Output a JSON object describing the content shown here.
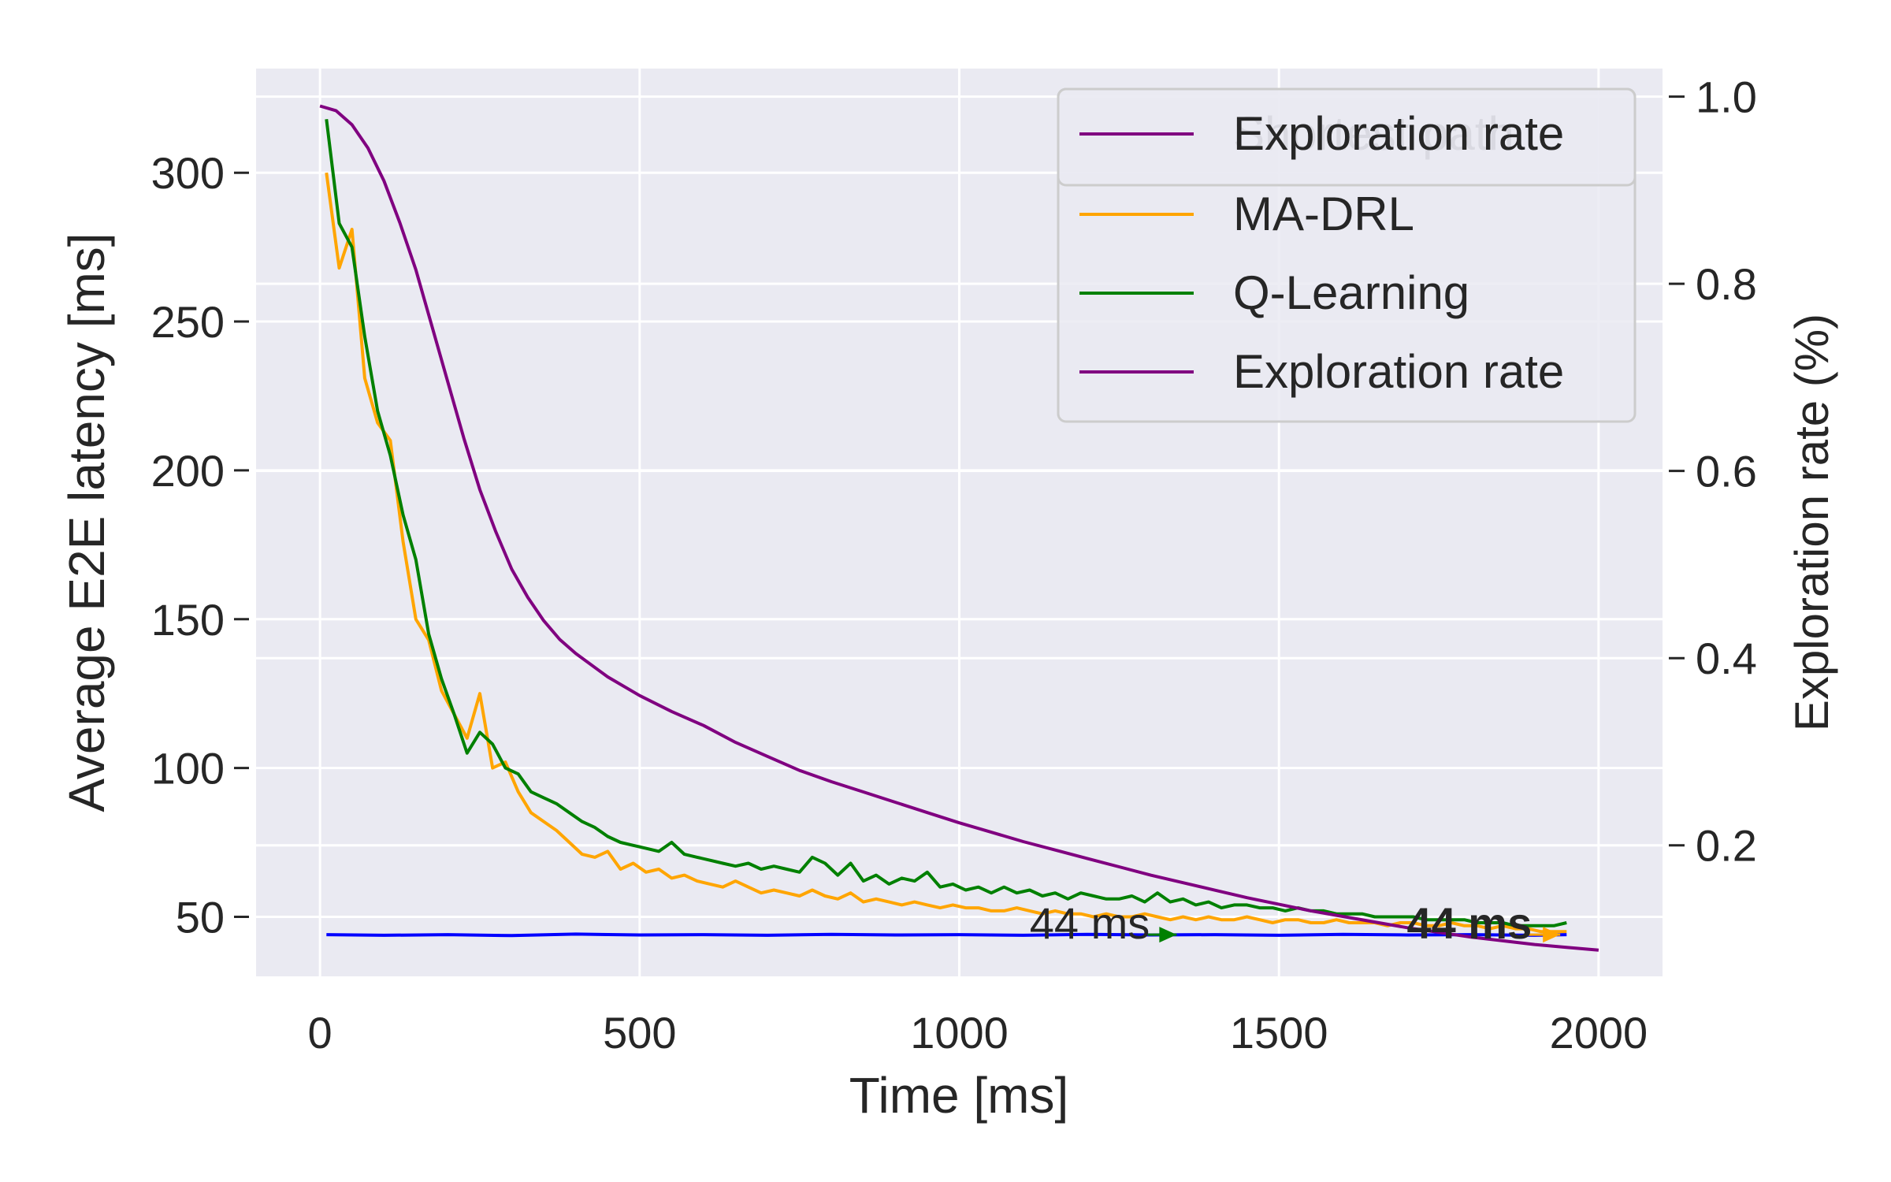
{
  "chart_data": {
    "type": "line",
    "xlabel": "Time [ms]",
    "ylabel": "Average E2E latency [ms]",
    "y2label": "Exploration rate (%)",
    "xlim": [
      -100,
      2100
    ],
    "ylim": [
      30,
      335
    ],
    "y2lim": [
      0.06,
      1.03
    ],
    "xticks": [
      0,
      500,
      1000,
      1500,
      2000
    ],
    "yticks": [
      50,
      100,
      150,
      200,
      250,
      300
    ],
    "y2ticks": [
      0.2,
      0.4,
      0.6,
      0.8,
      1.0
    ],
    "grid": true,
    "legend_position": "top-right",
    "legend": [
      {
        "label": "Exploration rate",
        "series": "exploration_rate"
      },
      {
        "label": "MA-DRL",
        "series": "ma_drl"
      },
      {
        "label": "Q-Learning",
        "series": "q_learning"
      },
      {
        "label": "Exploration rate",
        "series": "exploration_rate"
      }
    ],
    "legend_overlay": {
      "label": "Exploration rate",
      "ghost_text": "Shortest path"
    },
    "series": [
      {
        "id": "ma_drl",
        "name": "MA-DRL",
        "axis": "left",
        "color": "#ffa500",
        "x": [
          10,
          30,
          50,
          70,
          90,
          110,
          130,
          150,
          170,
          190,
          210,
          230,
          250,
          270,
          290,
          310,
          330,
          350,
          370,
          390,
          410,
          430,
          450,
          470,
          490,
          510,
          530,
          550,
          570,
          590,
          610,
          630,
          650,
          670,
          690,
          710,
          730,
          750,
          770,
          790,
          810,
          830,
          850,
          870,
          890,
          910,
          930,
          950,
          970,
          990,
          1010,
          1030,
          1050,
          1070,
          1090,
          1110,
          1130,
          1150,
          1170,
          1190,
          1210,
          1230,
          1250,
          1270,
          1290,
          1310,
          1330,
          1350,
          1370,
          1390,
          1410,
          1430,
          1450,
          1470,
          1490,
          1510,
          1530,
          1550,
          1570,
          1590,
          1610,
          1630,
          1650,
          1670,
          1690,
          1710,
          1730,
          1750,
          1770,
          1790,
          1810,
          1830,
          1850,
          1870,
          1890,
          1910,
          1930,
          1950
        ],
        "values": [
          300,
          268,
          281,
          231,
          216,
          210,
          176,
          150,
          143,
          126,
          118,
          110,
          125,
          100,
          102,
          92,
          85,
          82,
          79,
          75,
          71,
          70,
          72,
          66,
          68,
          65,
          66,
          63,
          64,
          62,
          61,
          60,
          62,
          60,
          58,
          59,
          58,
          57,
          59,
          57,
          56,
          58,
          55,
          56,
          55,
          54,
          55,
          54,
          53,
          54,
          53,
          53,
          52,
          52,
          53,
          52,
          51,
          52,
          51,
          51,
          50,
          51,
          50,
          50,
          51,
          50,
          49,
          50,
          49,
          50,
          49,
          49,
          50,
          49,
          48,
          49,
          49,
          48,
          48,
          49,
          48,
          48,
          48,
          47,
          48,
          48,
          47,
          47,
          48,
          47,
          47,
          46,
          47,
          46,
          46,
          45,
          45,
          45
        ]
      },
      {
        "id": "q_learning",
        "name": "Q-Learning",
        "axis": "left",
        "color": "#008000",
        "x": [
          10,
          30,
          50,
          70,
          90,
          110,
          130,
          150,
          170,
          190,
          210,
          230,
          250,
          270,
          290,
          310,
          330,
          350,
          370,
          390,
          410,
          430,
          450,
          470,
          490,
          510,
          530,
          550,
          570,
          590,
          610,
          630,
          650,
          670,
          690,
          710,
          730,
          750,
          770,
          790,
          810,
          830,
          850,
          870,
          890,
          910,
          930,
          950,
          970,
          990,
          1010,
          1030,
          1050,
          1070,
          1090,
          1110,
          1130,
          1150,
          1170,
          1190,
          1210,
          1230,
          1250,
          1270,
          1290,
          1310,
          1330,
          1350,
          1370,
          1390,
          1410,
          1430,
          1450,
          1470,
          1490,
          1510,
          1530,
          1550,
          1570,
          1590,
          1610,
          1630,
          1650,
          1670,
          1690,
          1710,
          1730,
          1750,
          1770,
          1790,
          1810,
          1830,
          1850,
          1870,
          1890,
          1910,
          1930,
          1950
        ],
        "values": [
          318,
          283,
          275,
          245,
          220,
          205,
          185,
          170,
          145,
          130,
          118,
          105,
          112,
          108,
          100,
          98,
          92,
          90,
          88,
          85,
          82,
          80,
          77,
          75,
          74,
          73,
          72,
          75,
          71,
          70,
          69,
          68,
          67,
          68,
          66,
          67,
          66,
          65,
          70,
          68,
          64,
          68,
          62,
          64,
          61,
          63,
          62,
          65,
          60,
          61,
          59,
          60,
          58,
          60,
          58,
          59,
          57,
          58,
          56,
          58,
          57,
          56,
          56,
          57,
          55,
          58,
          55,
          56,
          54,
          55,
          53,
          54,
          54,
          53,
          53,
          52,
          53,
          52,
          52,
          51,
          51,
          51,
          50,
          50,
          50,
          50,
          49,
          49,
          49,
          49,
          48,
          48,
          48,
          47,
          47,
          47,
          47,
          48
        ]
      },
      {
        "id": "shortest_path",
        "name": "",
        "axis": "left",
        "color": "#0000ff",
        "x": [
          10,
          100,
          200,
          300,
          400,
          500,
          600,
          700,
          800,
          900,
          1000,
          1100,
          1200,
          1300,
          1400,
          1500,
          1600,
          1700,
          1800,
          1900,
          1950
        ],
        "values": [
          44,
          43.8,
          44,
          43.7,
          44.2,
          43.9,
          44,
          43.8,
          44.1,
          43.9,
          44,
          43.8,
          44.1,
          43.9,
          44,
          43.8,
          44.1,
          43.9,
          44,
          43.8,
          44
        ]
      },
      {
        "id": "exploration_rate",
        "name": "Exploration rate",
        "axis": "right",
        "color": "#800080",
        "x": [
          0,
          25,
          50,
          75,
          100,
          125,
          150,
          175,
          200,
          225,
          250,
          275,
          300,
          325,
          350,
          375,
          400,
          450,
          500,
          550,
          600,
          650,
          700,
          750,
          800,
          850,
          900,
          950,
          1000,
          1050,
          1100,
          1150,
          1200,
          1250,
          1300,
          1350,
          1400,
          1450,
          1500,
          1550,
          1600,
          1650,
          1700,
          1750,
          1800,
          1850,
          1900,
          1950,
          2000
        ],
        "values": [
          0.99,
          0.985,
          0.97,
          0.945,
          0.91,
          0.865,
          0.815,
          0.755,
          0.695,
          0.635,
          0.58,
          0.535,
          0.495,
          0.465,
          0.44,
          0.42,
          0.405,
          0.38,
          0.36,
          0.343,
          0.328,
          0.31,
          0.295,
          0.28,
          0.268,
          0.257,
          0.246,
          0.235,
          0.224,
          0.214,
          0.204,
          0.195,
          0.186,
          0.177,
          0.168,
          0.16,
          0.152,
          0.144,
          0.137,
          0.13,
          0.124,
          0.118,
          0.112,
          0.107,
          0.102,
          0.098,
          0.094,
          0.091,
          0.088
        ]
      }
    ],
    "annotations": [
      {
        "text": "44 ms",
        "x": 1110,
        "y": 48,
        "arrow_to_x": 1340,
        "arrow_to_y": 44,
        "bold": false,
        "color": "#008000"
      },
      {
        "text": "44 ms",
        "x": 1700,
        "y": 48,
        "arrow_to_x": 1940,
        "arrow_to_y": 44,
        "bold": true,
        "color": "#ffa500"
      }
    ]
  }
}
